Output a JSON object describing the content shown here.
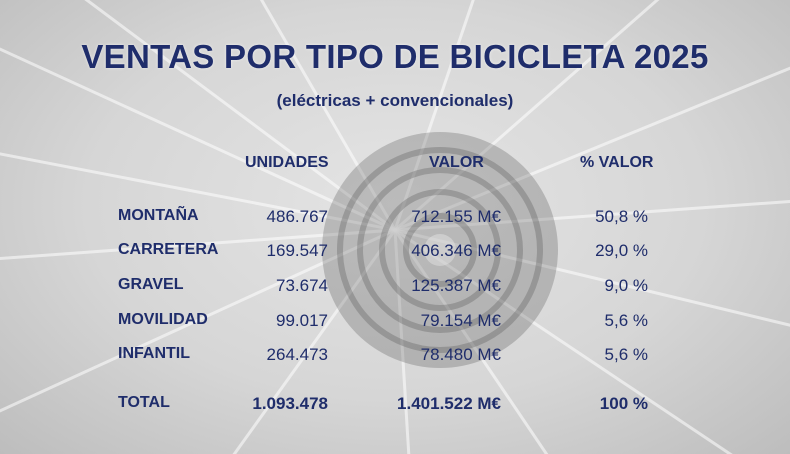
{
  "chart_data": {
    "type": "table",
    "title": "VENTAS POR TIPO DE BICICLETA 2025",
    "subtitle": "(eléctricas + convencionales)",
    "columns": [
      "UNIDADES",
      "VALOR",
      "% VALOR"
    ],
    "rows": [
      {
        "category": "MONTAÑA",
        "units": "486.767",
        "value": "712.155 M€",
        "pct": "50,8 %"
      },
      {
        "category": "CARRETERA",
        "units": "169.547",
        "value": "406.346 M€",
        "pct": "29,0 %"
      },
      {
        "category": "GRAVEL",
        "units": "73.674",
        "value": "125.387 M€",
        "pct": "9,0 %"
      },
      {
        "category": "MOVILIDAD",
        "units": "99.017",
        "value": "79.154 M€",
        "pct": "5,6 %"
      },
      {
        "category": "INFANTIL",
        "units": "264.473",
        "value": "78.480 M€",
        "pct": "5,6 %"
      }
    ],
    "total": {
      "category": "TOTAL",
      "units": "1.093.478",
      "value": "1.401.522 M€",
      "pct": "100 %"
    }
  },
  "colors": {
    "text": "#1f2d6b",
    "background": "#d6d6d6"
  }
}
